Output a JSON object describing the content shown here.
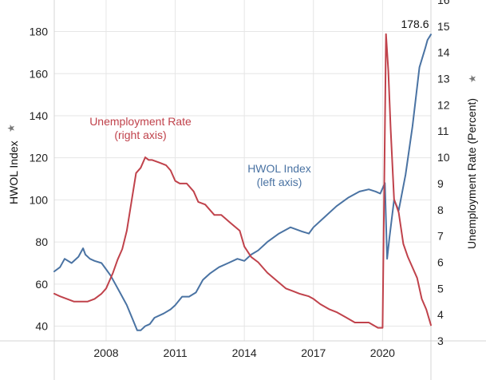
{
  "chart_data": {
    "type": "line",
    "title": "",
    "xlabel": "",
    "ylabel_left": "HWOL Index",
    "ylabel_right": "Unemployment Rate (Percent)",
    "xlim": [
      2005.75,
      2022.1
    ],
    "ylim_left": [
      33,
      195
    ],
    "ylim_right": [
      3,
      16
    ],
    "x_ticks": [
      2008,
      2011,
      2014,
      2017,
      2020
    ],
    "y_ticks_left": [
      40,
      60,
      80,
      100,
      120,
      140,
      160,
      180
    ],
    "y_ticks_right": [
      3,
      4,
      5,
      6,
      7,
      8,
      9,
      10,
      11,
      12,
      13,
      14,
      15,
      16
    ],
    "grid": true,
    "legend": "none",
    "end_label": "178.6",
    "annotations": [
      {
        "line1": "Unemployment Rate",
        "line2": "(right axis)",
        "color": "#c0424b"
      },
      {
        "line1": "HWOL Index",
        "line2": "(left axis)",
        "color": "#4a73a3"
      }
    ],
    "series": [
      {
        "name": "HWOL Index",
        "axis": "left",
        "color": "#4a73a3",
        "x": [
          2005.75,
          2006.0,
          2006.2,
          2006.5,
          2006.8,
          2007.0,
          2007.1,
          2007.3,
          2007.5,
          2007.8,
          2008.0,
          2008.2,
          2008.4,
          2008.6,
          2008.9,
          2009.2,
          2009.35,
          2009.5,
          2009.7,
          2009.9,
          2010.1,
          2010.5,
          2010.8,
          2011.0,
          2011.3,
          2011.6,
          2011.9,
          2012.2,
          2012.5,
          2012.9,
          2013.3,
          2013.7,
          2014.0,
          2014.3,
          2014.6,
          2015.0,
          2015.5,
          2016.0,
          2016.5,
          2016.8,
          2017.0,
          2017.5,
          2018.0,
          2018.5,
          2019.0,
          2019.4,
          2019.7,
          2019.9,
          2020.1,
          2020.2,
          2020.3,
          2020.5,
          2020.7,
          2021.0,
          2021.3,
          2021.6,
          2021.85,
          2021.95,
          2022.1
        ],
        "y": [
          66,
          68,
          72,
          70,
          73,
          77,
          74,
          72,
          71,
          70,
          67,
          64,
          60,
          56,
          50,
          42,
          38,
          38,
          40,
          41,
          44,
          46,
          48,
          50,
          54,
          54,
          56,
          62,
          65,
          68,
          70,
          72,
          71,
          74,
          76,
          80,
          84,
          87,
          85,
          84,
          87,
          92,
          97,
          101,
          104,
          105,
          104,
          103,
          108,
          72,
          82,
          100,
          95,
          112,
          135,
          163,
          172,
          176,
          178.6
        ]
      },
      {
        "name": "Unemployment Rate",
        "axis": "right",
        "color": "#c0424b",
        "x": [
          2005.75,
          2006.0,
          2006.3,
          2006.6,
          2006.9,
          2007.2,
          2007.5,
          2007.8,
          2008.0,
          2008.3,
          2008.5,
          2008.7,
          2008.9,
          2009.1,
          2009.3,
          2009.5,
          2009.7,
          2009.85,
          2010.0,
          2010.3,
          2010.6,
          2010.8,
          2011.0,
          2011.2,
          2011.5,
          2011.8,
          2012.0,
          2012.3,
          2012.7,
          2013.0,
          2013.4,
          2013.8,
          2014.0,
          2014.3,
          2014.6,
          2015.0,
          2015.4,
          2015.8,
          2016.1,
          2016.4,
          2016.8,
          2017.0,
          2017.3,
          2017.7,
          2018.0,
          2018.4,
          2018.8,
          2019.0,
          2019.4,
          2019.8,
          2020.0,
          2020.15,
          2020.25,
          2020.35,
          2020.5,
          2020.7,
          2020.9,
          2021.1,
          2021.3,
          2021.5,
          2021.7,
          2021.9,
          2022.1
        ],
        "y": [
          4.8,
          4.7,
          4.6,
          4.5,
          4.5,
          4.5,
          4.6,
          4.8,
          5.0,
          5.6,
          6.1,
          6.5,
          7.2,
          8.3,
          9.4,
          9.6,
          10.0,
          9.9,
          9.9,
          9.8,
          9.7,
          9.5,
          9.1,
          9.0,
          9.0,
          8.7,
          8.3,
          8.2,
          7.8,
          7.8,
          7.5,
          7.2,
          6.6,
          6.2,
          6.0,
          5.6,
          5.3,
          5.0,
          4.9,
          4.8,
          4.7,
          4.6,
          4.4,
          4.2,
          4.1,
          3.9,
          3.7,
          3.7,
          3.7,
          3.5,
          3.5,
          14.7,
          13.3,
          11.1,
          8.4,
          7.9,
          6.7,
          6.2,
          5.8,
          5.4,
          4.6,
          4.2,
          3.6
        ]
      }
    ]
  }
}
